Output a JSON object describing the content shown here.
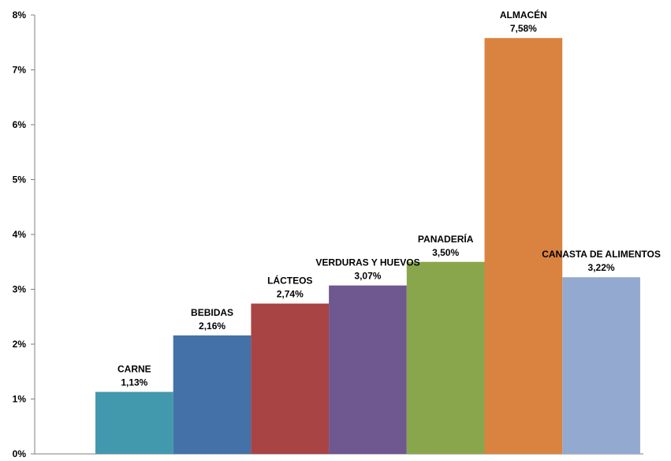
{
  "chart_data": {
    "type": "bar",
    "title": "",
    "xlabel": "",
    "ylabel": "",
    "categories": [
      "CARNE",
      "BEBIDAS",
      "LÁCTEOS",
      "VERDURAS Y HUEVOS",
      "PANADERÍA",
      "ALMACÉN",
      "CANASTA DE ALIMENTOS"
    ],
    "values": [
      1.13,
      2.16,
      2.74,
      3.07,
      3.5,
      7.58,
      3.22
    ],
    "value_labels": [
      "1,13%",
      "2,16%",
      "2,74%",
      "3,07%",
      "3,50%",
      "7,58%",
      "3,22%"
    ],
    "colors": [
      "#4299ae",
      "#4471a8",
      "#a94444",
      "#6f578f",
      "#8aa64c",
      "#da8340",
      "#93a9d0"
    ],
    "ylim": [
      0,
      8
    ],
    "yticks": [
      "0%",
      "1%",
      "2%",
      "3%",
      "4%",
      "5%",
      "6%",
      "7%",
      "8%"
    ],
    "grid": false,
    "legend": "none"
  }
}
